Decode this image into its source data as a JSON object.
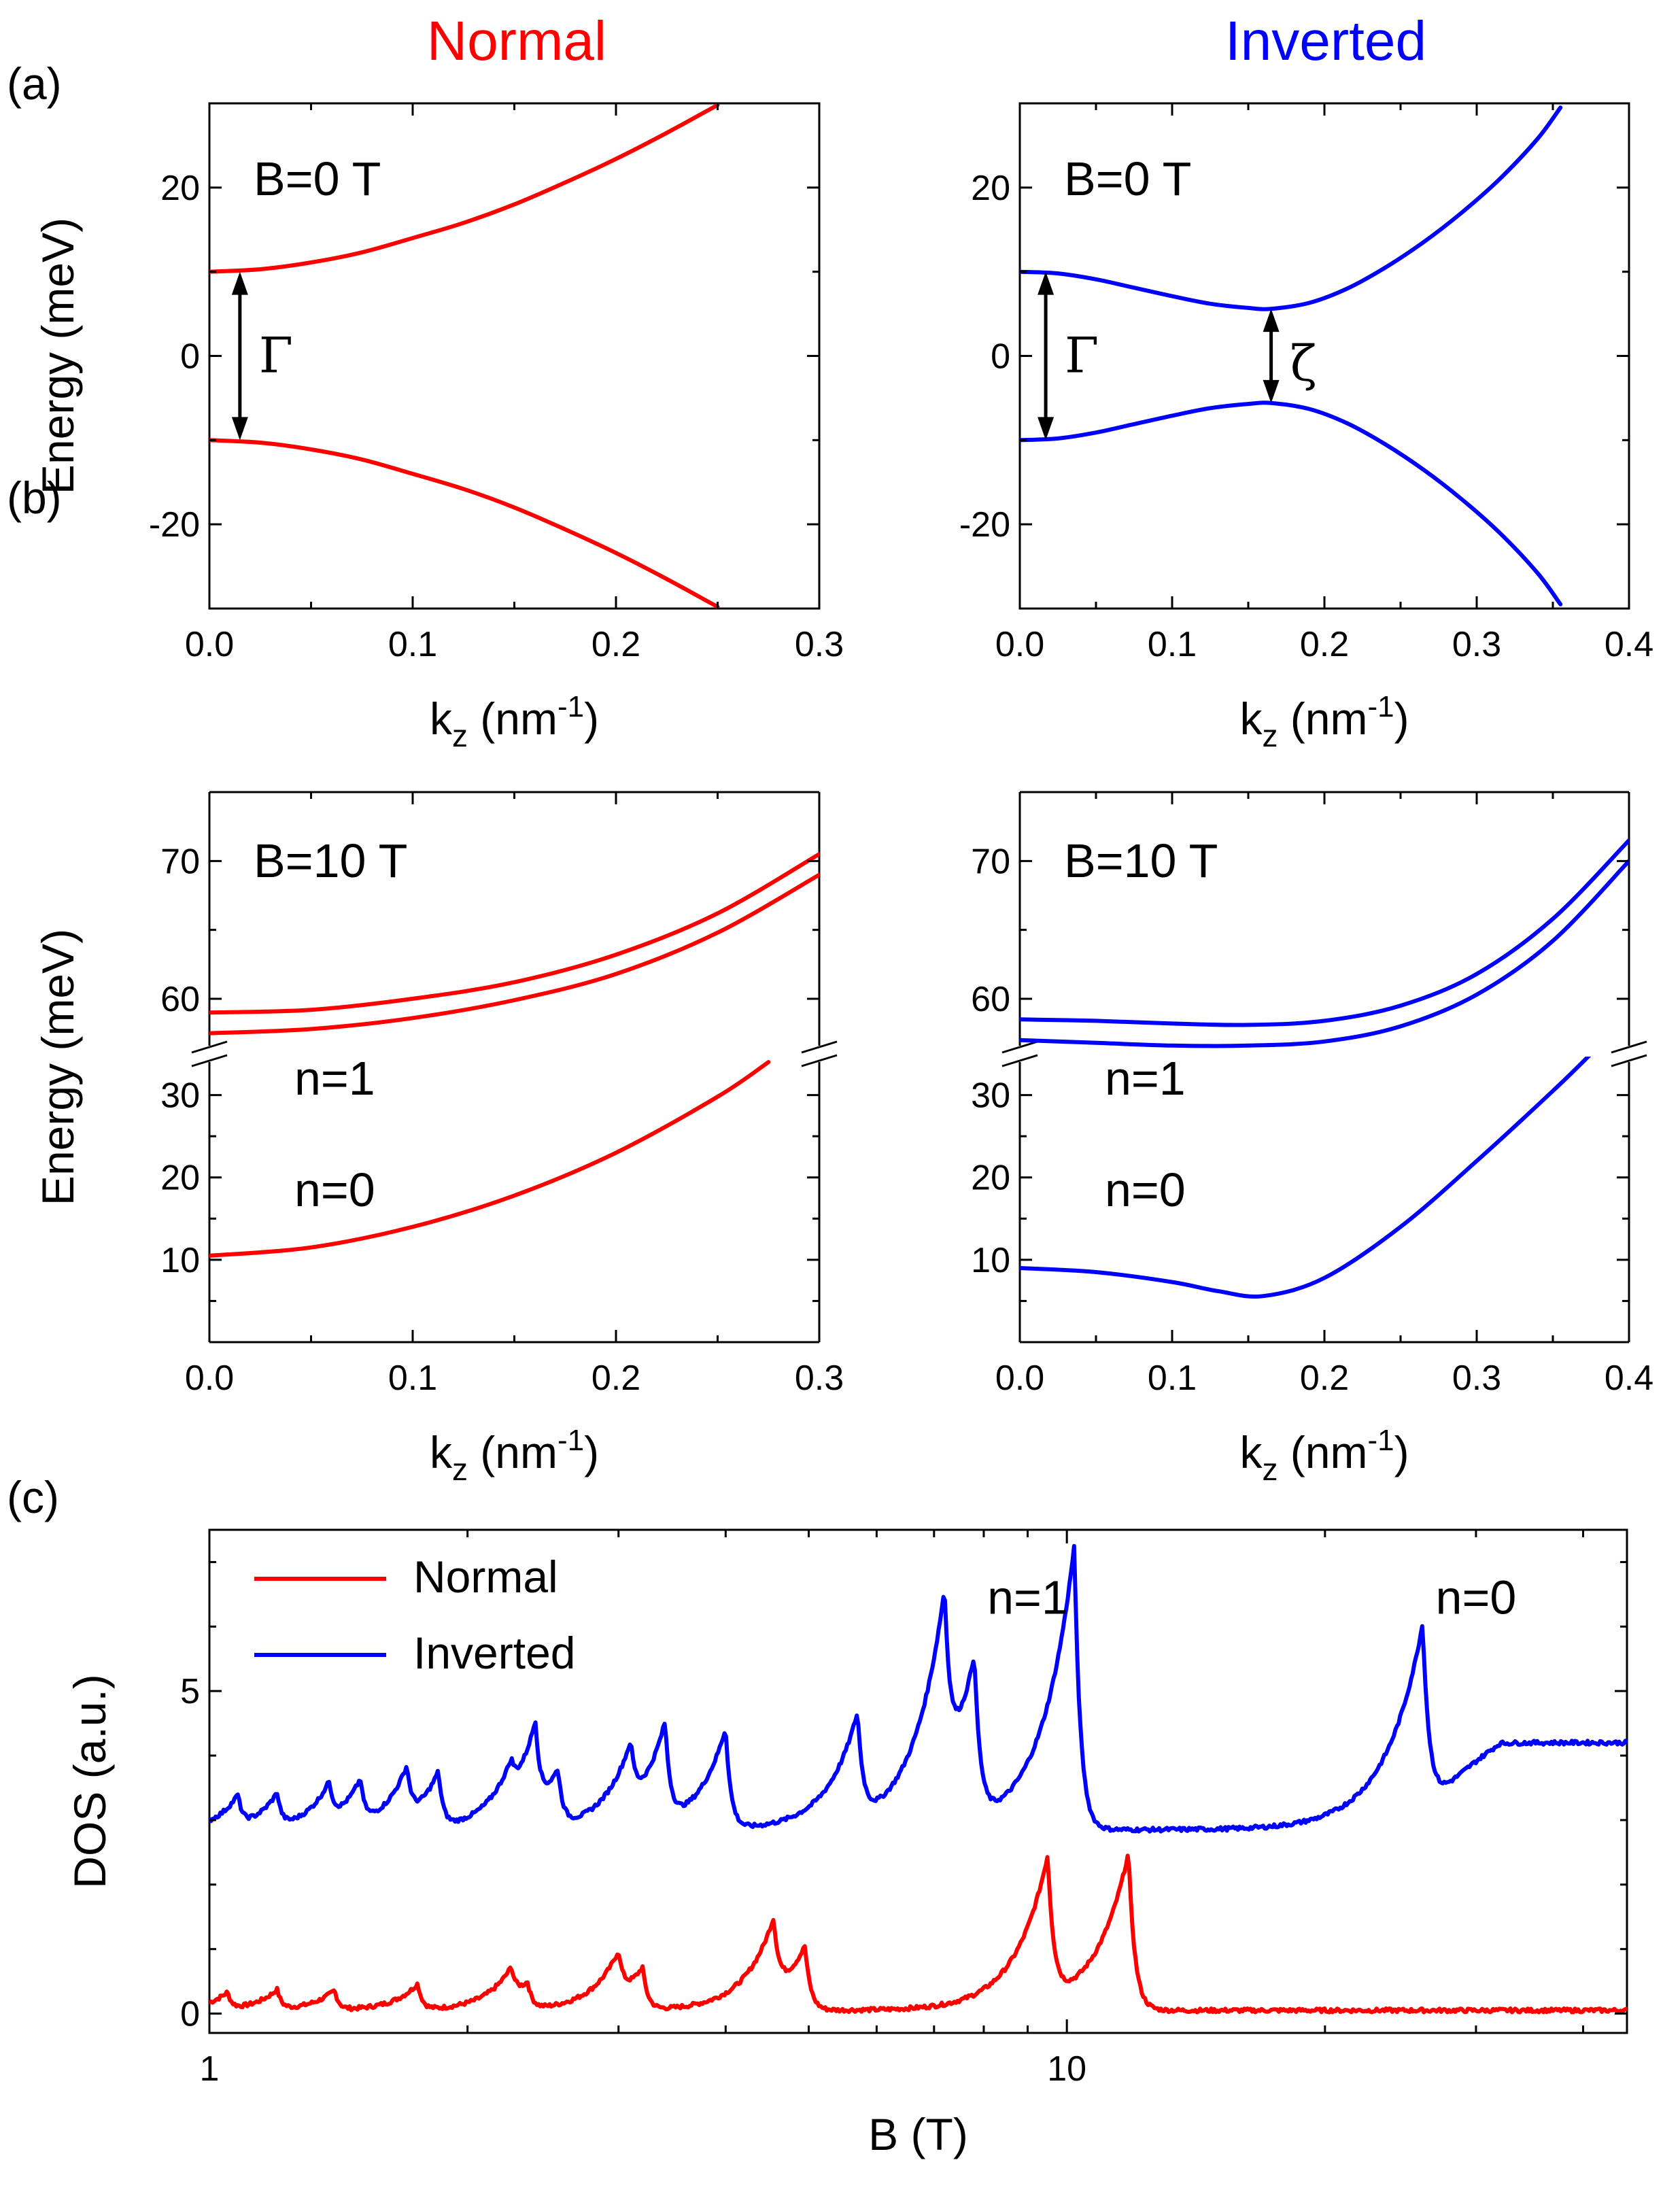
{
  "figure": {
    "col_titles": [
      {
        "text": "Normal",
        "color": "#ff0000"
      },
      {
        "text": "Inverted",
        "color": "#0000ff"
      }
    ],
    "panel_labels": [
      "(a)",
      "(b)",
      "(c)"
    ],
    "annotations": {
      "gamma": "Γ",
      "zeta": "ζ"
    }
  },
  "colors": {
    "normal": "#ff0000",
    "inverted": "#0000ff"
  },
  "chart_data": [
    {
      "id": "a_normal",
      "type": "line",
      "panel": "(a)",
      "column_title": "Normal",
      "title": "B=0 T",
      "xlabel": "k_z (nm^-1)",
      "ylabel": "Energy (meV)",
      "xlim": [
        0,
        0.3
      ],
      "ylim": [
        -30,
        30
      ],
      "xticks": [
        0.0,
        0.1,
        0.2,
        0.3
      ],
      "xtick_labels": [
        "0.0",
        "0.1",
        "0.2",
        "0.3"
      ],
      "yticks": [
        -20,
        0,
        20
      ],
      "ytick_labels": [
        "-20",
        "0",
        "20"
      ],
      "series": [
        {
          "name": "conduction band",
          "color": "#ff0000",
          "x": [
            0,
            0.025,
            0.05,
            0.075,
            0.1,
            0.125,
            0.15,
            0.175,
            0.2,
            0.225,
            0.25
          ],
          "y": [
            10.0,
            10.3,
            11.1,
            12.3,
            14.0,
            15.8,
            18.0,
            20.6,
            23.4,
            26.5,
            29.8
          ]
        },
        {
          "name": "valence band",
          "color": "#ff0000",
          "x": [
            0,
            0.025,
            0.05,
            0.075,
            0.1,
            0.125,
            0.15,
            0.175,
            0.2,
            0.225,
            0.25
          ],
          "y": [
            -10.0,
            -10.3,
            -11.1,
            -12.3,
            -14.0,
            -15.8,
            -18.0,
            -20.6,
            -23.4,
            -26.5,
            -29.8
          ]
        }
      ],
      "annotation": {
        "label": "Γ",
        "between": [
          -10,
          10
        ],
        "at_x": 0.015
      }
    },
    {
      "id": "a_inverted",
      "type": "line",
      "panel": "(a)",
      "column_title": "Inverted",
      "title": "B=0 T",
      "xlabel": "k_z (nm^-1)",
      "ylabel": "",
      "xlim": [
        0,
        0.4
      ],
      "ylim": [
        -30,
        30
      ],
      "xticks": [
        0.0,
        0.1,
        0.2,
        0.3,
        0.4
      ],
      "xtick_labels": [
        "0.0",
        "0.1",
        "0.2",
        "0.3",
        "0.4"
      ],
      "yticks": [
        -20,
        0,
        20
      ],
      "ytick_labels": [
        "-20",
        "0",
        "20"
      ],
      "series": [
        {
          "name": "conduction band",
          "color": "#0000ff",
          "x": [
            0,
            0.025,
            0.05,
            0.075,
            0.1,
            0.125,
            0.15,
            0.165,
            0.19,
            0.215,
            0.24,
            0.265,
            0.29,
            0.315,
            0.34,
            0.355
          ],
          "y": [
            10.0,
            9.8,
            9.1,
            8.1,
            7.1,
            6.2,
            5.7,
            5.6,
            6.3,
            8.0,
            10.5,
            13.5,
            17.0,
            21.0,
            25.8,
            29.5
          ]
        },
        {
          "name": "valence band",
          "color": "#0000ff",
          "x": [
            0,
            0.025,
            0.05,
            0.075,
            0.1,
            0.125,
            0.15,
            0.165,
            0.19,
            0.215,
            0.24,
            0.265,
            0.29,
            0.315,
            0.34,
            0.355
          ],
          "y": [
            -10.0,
            -9.8,
            -9.1,
            -8.1,
            -7.1,
            -6.2,
            -5.7,
            -5.6,
            -6.3,
            -8.0,
            -10.5,
            -13.5,
            -17.0,
            -21.0,
            -25.8,
            -29.5
          ]
        }
      ],
      "annotation": {
        "gamma": {
          "label": "Γ",
          "between": [
            -10,
            10
          ],
          "at_x": 0.017
        },
        "zeta": {
          "label": "ζ",
          "between": [
            -5.6,
            5.6
          ],
          "at_x": 0.165
        }
      }
    },
    {
      "id": "b_normal",
      "type": "line",
      "panel": "(b)",
      "column_title": "Normal",
      "title": "B=10 T",
      "xlabel": "k_z (nm^-1)",
      "ylabel": "Energy (meV)",
      "xlim": [
        0,
        0.3
      ],
      "broken_axis": {
        "upper_range": [
          56,
          75
        ],
        "lower_range": [
          0,
          35
        ]
      },
      "xticks": [
        0.0,
        0.1,
        0.2,
        0.3
      ],
      "xtick_labels": [
        "0.0",
        "0.1",
        "0.2",
        "0.3"
      ],
      "yticks_upper": [
        60,
        70
      ],
      "yticks_lower": [
        10,
        20,
        30
      ],
      "ytick_labels": [
        "70",
        "60",
        "30",
        "20",
        "10"
      ],
      "level_labels": [
        "n=1",
        "n=0"
      ],
      "series": [
        {
          "name": "n=1 upper",
          "segment": "upper",
          "color": "#ff0000",
          "x": [
            0,
            0.05,
            0.1,
            0.15,
            0.2,
            0.25,
            0.3
          ],
          "y": [
            59.0,
            59.2,
            60.0,
            61.2,
            63.2,
            66.2,
            70.5
          ]
        },
        {
          "name": "n=1 lower",
          "segment": "upper",
          "color": "#ff0000",
          "x": [
            0,
            0.05,
            0.1,
            0.15,
            0.2,
            0.25,
            0.3
          ],
          "y": [
            57.5,
            57.8,
            58.6,
            59.9,
            61.8,
            64.8,
            69.0
          ]
        },
        {
          "name": "n=0",
          "segment": "lower",
          "color": "#ff0000",
          "x": [
            0,
            0.05,
            0.1,
            0.15,
            0.2,
            0.25,
            0.275
          ],
          "y": [
            10.5,
            11.5,
            14.0,
            17.8,
            23.0,
            29.8,
            34.0
          ]
        }
      ]
    },
    {
      "id": "b_inverted",
      "type": "line",
      "panel": "(b)",
      "column_title": "Inverted",
      "title": "B=10 T",
      "xlabel": "k_z (nm^-1)",
      "ylabel": "",
      "xlim": [
        0,
        0.4
      ],
      "broken_axis": {
        "upper_range": [
          56,
          75
        ],
        "lower_range": [
          0,
          35
        ]
      },
      "xticks": [
        0.0,
        0.1,
        0.2,
        0.3,
        0.4
      ],
      "xtick_labels": [
        "0.0",
        "0.1",
        "0.2",
        "0.3",
        "0.4"
      ],
      "yticks_upper": [
        60,
        70
      ],
      "yticks_lower": [
        10,
        20,
        30
      ],
      "ytick_labels": [
        "70",
        "60",
        "30",
        "20",
        "10"
      ],
      "level_labels": [
        "n=1",
        "n=0"
      ],
      "series": [
        {
          "name": "n=1 upper",
          "segment": "upper",
          "color": "#0000ff",
          "x": [
            0,
            0.05,
            0.1,
            0.15,
            0.2,
            0.25,
            0.3,
            0.35,
            0.4
          ],
          "y": [
            58.5,
            58.4,
            58.2,
            58.1,
            58.4,
            59.5,
            61.8,
            65.8,
            71.5
          ]
        },
        {
          "name": "n=1 lower",
          "segment": "upper",
          "color": "#0000ff",
          "x": [
            0,
            0.05,
            0.1,
            0.15,
            0.2,
            0.25,
            0.3,
            0.35,
            0.4
          ],
          "y": [
            57.0,
            56.8,
            56.6,
            56.6,
            56.9,
            58.0,
            60.3,
            64.2,
            70.0
          ]
        },
        {
          "name": "n=0",
          "segment": "lower",
          "color": "#0000ff",
          "x": [
            0,
            0.05,
            0.1,
            0.13,
            0.16,
            0.2,
            0.25,
            0.3,
            0.35,
            0.375
          ],
          "y": [
            9.0,
            8.5,
            7.3,
            6.2,
            5.6,
            7.8,
            14.0,
            22.0,
            30.5,
            35.0
          ]
        }
      ]
    },
    {
      "id": "c",
      "type": "line",
      "panel": "(c)",
      "xlabel": "B (T)",
      "ylabel": "DOS (a.u.)",
      "xscale": "log",
      "xlim": [
        1,
        45
      ],
      "ylim": [
        -0.3,
        7.5
      ],
      "xticks": [
        1,
        10
      ],
      "xtick_labels": [
        "1",
        "10"
      ],
      "yticks": [
        0,
        5
      ],
      "ytick_labels": [
        "0",
        "5"
      ],
      "legend": {
        "position": "top-left",
        "entries": [
          "Normal",
          "Inverted"
        ]
      },
      "peak_labels": [
        {
          "text": "n=1",
          "B": 9.0,
          "DOS": 6.2
        },
        {
          "text": "n=0",
          "B": 30,
          "DOS": 6.2
        }
      ],
      "series": [
        {
          "name": "Normal",
          "color": "#ff0000",
          "baseline": 0.05,
          "peaks": [
            [
              1.05,
              0.25
            ],
            [
              1.2,
              0.3
            ],
            [
              1.4,
              0.3
            ],
            [
              1.75,
              0.4
            ],
            [
              2.25,
              0.45
            ],
            [
              2.35,
              0.4
            ],
            [
              3.0,
              0.65
            ],
            [
              3.2,
              0.65
            ],
            [
              4.55,
              1.1
            ],
            [
              4.95,
              1.0
            ],
            [
              9.5,
              2.2
            ],
            [
              11.8,
              2.45
            ]
          ]
        },
        {
          "name": "Inverted",
          "color": "#0000ff",
          "baseline": 2.85,
          "peaks": [
            [
              1.08,
              0.45
            ],
            [
              1.2,
              0.5
            ],
            [
              1.38,
              0.55
            ],
            [
              1.5,
              0.65
            ],
            [
              1.7,
              0.75
            ],
            [
              1.85,
              0.85
            ],
            [
              2.25,
              0.45
            ],
            [
              2.4,
              1.3
            ],
            [
              2.55,
              0.85
            ],
            [
              3.1,
              0.9
            ],
            [
              3.4,
              1.5
            ],
            [
              4.0,
              1.55
            ],
            [
              5.7,
              1.6
            ],
            [
              7.2,
              2.7
            ],
            [
              7.8,
              2.5
            ],
            [
              10.2,
              4.4
            ],
            [
              26,
              3.2
            ]
          ],
          "tail_level_after_n0": 4.2
        }
      ]
    }
  ]
}
